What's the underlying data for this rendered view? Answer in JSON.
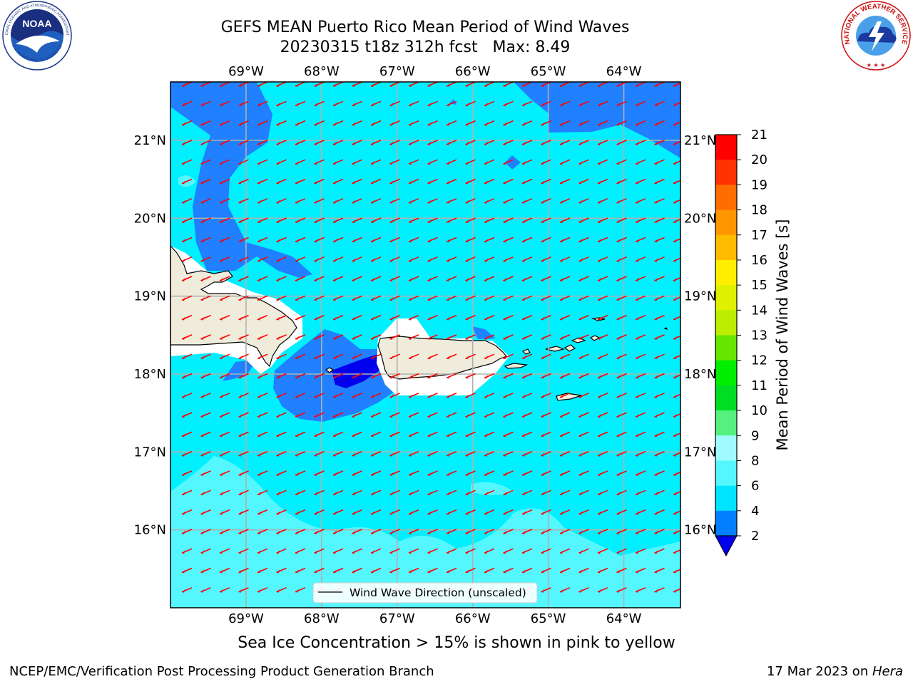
{
  "header": {
    "title_line1": "GEFS MEAN Puerto Rico Mean Period of Wind Waves",
    "title_line2": "20230315 t18z 312h fcst   Max: 8.49"
  },
  "logos": {
    "noaa_text": "NOAA",
    "noaa_ring_top": "NATIONAL OCEANIC AND ATMOSPHERIC ADMINISTRATION",
    "noaa_ring_bottom": "U.S. DEPARTMENT OF COMMERCE",
    "nws_ring": "NATIONAL WEATHER SERVICE"
  },
  "map": {
    "lon_labels": [
      "69°W",
      "68°W",
      "67°W",
      "66°W",
      "65°W",
      "64°W"
    ],
    "lat_labels": [
      "21°N",
      "20°N",
      "19°N",
      "18°N",
      "17°N",
      "16°N"
    ],
    "lon_range": [
      -70.0,
      -63.25
    ],
    "lat_range": [
      15.0,
      21.75
    ],
    "legend_label": "Wind Wave Direction (unscaled)",
    "arrow_direction": "toward southwest",
    "colors": {
      "frame": "#000000",
      "grid": "#b0b0b0",
      "land": "#efecdc",
      "arrow": "#ff0000",
      "water_cyan": "#00f0ff",
      "water_light": "#55f7ff",
      "water_blue": "#2080ff",
      "water_dark": "#0000ee"
    }
  },
  "colorbar": {
    "label": "Mean Period of Wind Waves [s]",
    "ticks": [
      "2",
      "4",
      "6",
      "8",
      "9",
      "10",
      "11",
      "12",
      "13",
      "14",
      "15",
      "16",
      "17",
      "18",
      "19",
      "20",
      "21"
    ],
    "colors": [
      "#0000ee",
      "#0080ff",
      "#00e5ff",
      "#55f7ff",
      "#9ffbff",
      "#55f080",
      "#00dd22",
      "#00ee00",
      "#66e600",
      "#bbee00",
      "#dff000",
      "#ffee00",
      "#ffbb00",
      "#ff9500",
      "#ff6d00",
      "#ff3300",
      "#ff0000"
    ],
    "extend": "min"
  },
  "subtitle": "Sea Ice Concentration > 15% is shown in pink to yellow",
  "footer": {
    "left": "NCEP/EMC/Verification Post Processing Product Generation Branch",
    "right_date": "17 Mar 2023 on ",
    "right_host": "Hera"
  }
}
